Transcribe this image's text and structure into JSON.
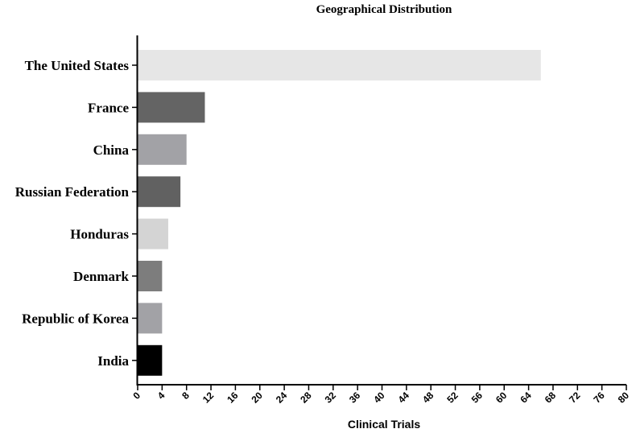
{
  "chart_data": {
    "type": "bar",
    "orientation": "horizontal",
    "title": "Geographical Distribution",
    "xlabel": "Clinical Trials",
    "ylabel": "",
    "xlim": [
      0,
      80
    ],
    "xticks": [
      0,
      4,
      8,
      12,
      16,
      20,
      24,
      28,
      32,
      36,
      40,
      44,
      48,
      52,
      56,
      60,
      64,
      68,
      72,
      76,
      80
    ],
    "grid": false,
    "categories": [
      "The United States",
      "France",
      "China",
      "Russian Federation",
      "Honduras",
      "Denmark",
      "Republic of Korea",
      "India"
    ],
    "values": [
      66,
      11,
      8,
      7,
      5,
      4,
      4,
      4
    ],
    "colors": [
      "#e6e6e6",
      "#646464",
      "#a2a2a6",
      "#616161",
      "#d4d4d4",
      "#7d7d7d",
      "#a2a2a6",
      "#000000"
    ]
  }
}
